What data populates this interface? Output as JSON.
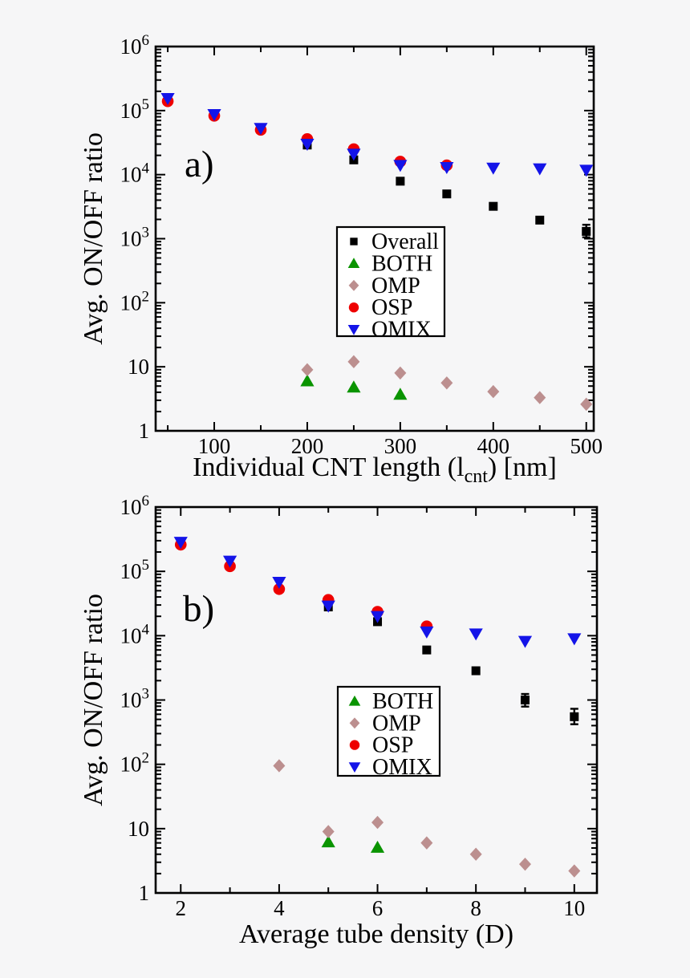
{
  "figure": {
    "background": "#f6f6f7",
    "frame_color": "#000000",
    "text_color": "#000000",
    "legend_background": "#ffffff"
  },
  "chart_data": [
    {
      "id": "a",
      "type": "scatter",
      "panel_label": "a)",
      "ylabel": "Avg. ON/OFF ratio",
      "xlabel_parts": {
        "prefix": "Individual CNT length (l",
        "subscript": "cnt",
        "suffix": ") [nm]"
      },
      "xscale": "linear",
      "yscale": "log",
      "xlim": [
        37,
        508
      ],
      "ylim": [
        1,
        1000000
      ],
      "x_major_ticks": [
        100,
        200,
        300,
        400,
        500
      ],
      "x_minor_ticks": [
        50,
        150,
        250,
        350,
        450
      ],
      "y_major_ticks": [
        {
          "value": 1,
          "label": "1"
        },
        {
          "value": 10,
          "label": "10"
        },
        {
          "value": 100,
          "label": "10",
          "exponent": "2"
        },
        {
          "value": 1000,
          "label": "10",
          "exponent": "3"
        },
        {
          "value": 10000,
          "label": "10",
          "exponent": "4"
        },
        {
          "value": 100000,
          "label": "10",
          "exponent": "5"
        },
        {
          "value": 1000000,
          "label": "10",
          "exponent": "6"
        }
      ],
      "legend": [
        {
          "label": "Overall",
          "marker": "square",
          "color": "#000000"
        },
        {
          "label": "BOTH",
          "marker": "triangle-up",
          "color": "#0a9400"
        },
        {
          "label": "OMP",
          "marker": "diamond",
          "color": "#bc8f8f"
        },
        {
          "label": "OSP",
          "marker": "circle",
          "color": "#ee0000"
        },
        {
          "label": "OMIX",
          "marker": "triangle-down",
          "color": "#1414e8"
        }
      ],
      "series": [
        {
          "name": "Overall",
          "marker": "square",
          "color": "#000000",
          "points": [
            [
              200,
              29000
            ],
            [
              250,
              17000
            ],
            [
              300,
              7900
            ],
            [
              350,
              5000
            ],
            [
              400,
              3200
            ],
            [
              450,
              1950
            ],
            [
              500,
              1300
            ]
          ],
          "error_bars": [
            {
              "x": 500,
              "low": 1050,
              "high": 1650
            }
          ]
        },
        {
          "name": "BOTH",
          "marker": "triangle-up",
          "color": "#0a9400",
          "points": [
            [
              200,
              6.0
            ],
            [
              250,
              4.8
            ],
            [
              300,
              3.7
            ]
          ]
        },
        {
          "name": "OMP",
          "marker": "diamond",
          "color": "#bc8f8f",
          "points": [
            [
              200,
              9.0
            ],
            [
              250,
              12.0
            ],
            [
              300,
              8.0
            ],
            [
              350,
              5.6
            ],
            [
              400,
              4.1
            ],
            [
              450,
              3.3
            ],
            [
              500,
              2.6
            ]
          ]
        },
        {
          "name": "OSP",
          "marker": "circle",
          "color": "#ee0000",
          "points": [
            [
              50,
              140000
            ],
            [
              100,
              83000
            ],
            [
              150,
              50000
            ],
            [
              200,
              36000
            ],
            [
              250,
              25000
            ],
            [
              300,
              16000
            ],
            [
              350,
              14000
            ]
          ]
        },
        {
          "name": "OMIX",
          "marker": "triangle-down",
          "color": "#1414e8",
          "points": [
            [
              50,
              155000
            ],
            [
              100,
              87000
            ],
            [
              150,
              53000
            ],
            [
              200,
              30000
            ],
            [
              250,
              21000
            ],
            [
              300,
              14000
            ],
            [
              350,
              13000
            ],
            [
              400,
              12700
            ],
            [
              450,
              12400
            ],
            [
              500,
              11800
            ]
          ]
        }
      ]
    },
    {
      "id": "b",
      "type": "scatter",
      "panel_label": "b)",
      "ylabel": "Avg. ON/OFF ratio",
      "xlabel_parts": {
        "prefix": "Average tube density (D)",
        "subscript": "",
        "suffix": ""
      },
      "xscale": "linear",
      "yscale": "log",
      "xlim": [
        1.49,
        10.46
      ],
      "ylim": [
        1,
        1000000
      ],
      "x_major_ticks": [
        2,
        4,
        6,
        8,
        10
      ],
      "x_minor_ticks": [
        3,
        5,
        7,
        9
      ],
      "y_major_ticks": [
        {
          "value": 1,
          "label": "1"
        },
        {
          "value": 10,
          "label": "10"
        },
        {
          "value": 100,
          "label": "10",
          "exponent": "2"
        },
        {
          "value": 1000,
          "label": "10",
          "exponent": "3"
        },
        {
          "value": 10000,
          "label": "10",
          "exponent": "4"
        },
        {
          "value": 100000,
          "label": "10",
          "exponent": "5"
        },
        {
          "value": 1000000,
          "label": "10",
          "exponent": "6"
        }
      ],
      "legend": [
        {
          "label": "BOTH",
          "marker": "triangle-up",
          "color": "#0a9400"
        },
        {
          "label": "OMP",
          "marker": "diamond",
          "color": "#bc8f8f"
        },
        {
          "label": "OSP",
          "marker": "circle",
          "color": "#ee0000"
        },
        {
          "label": "OMIX",
          "marker": "triangle-down",
          "color": "#1414e8"
        }
      ],
      "series": [
        {
          "name": "Overall",
          "marker": "square",
          "color": "#000000",
          "points": [
            [
              5,
              28000
            ],
            [
              6,
              16500
            ],
            [
              7,
              6000
            ],
            [
              8,
              2850
            ],
            [
              9,
              1000
            ],
            [
              10,
              550
            ]
          ],
          "error_bars": [
            {
              "x": 9,
              "low": 790,
              "high": 1240
            },
            {
              "x": 10,
              "low": 420,
              "high": 730
            }
          ]
        },
        {
          "name": "BOTH",
          "marker": "triangle-up",
          "color": "#0a9400",
          "points": [
            [
              5,
              6.2
            ],
            [
              6,
              5.1
            ]
          ]
        },
        {
          "name": "OMP",
          "marker": "diamond",
          "color": "#bc8f8f",
          "points": [
            [
              4,
              95
            ],
            [
              5,
              9.0
            ],
            [
              6,
              12.5
            ],
            [
              7,
              6.0
            ],
            [
              8,
              4.0
            ],
            [
              9,
              2.8
            ],
            [
              10,
              2.2
            ]
          ]
        },
        {
          "name": "OSP",
          "marker": "circle",
          "color": "#ee0000",
          "points": [
            [
              2,
              260000
            ],
            [
              3,
              120000
            ],
            [
              4,
              53000
            ],
            [
              5,
              36000
            ],
            [
              6,
              23500
            ],
            [
              7,
              14000
            ]
          ]
        },
        {
          "name": "OMIX",
          "marker": "triangle-down",
          "color": "#1414e8",
          "points": [
            [
              2,
              285000
            ],
            [
              3,
              145000
            ],
            [
              4,
              68000
            ],
            [
              5,
              29000
            ],
            [
              6,
              20000
            ],
            [
              7,
              11500
            ],
            [
              8,
              10700
            ],
            [
              9,
              8200
            ],
            [
              10,
              9000
            ]
          ]
        }
      ]
    }
  ]
}
